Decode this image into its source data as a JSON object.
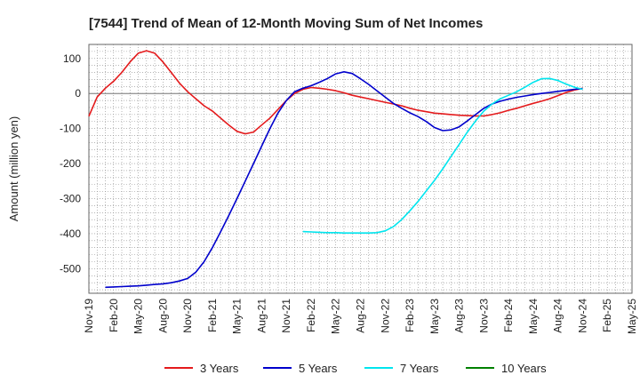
{
  "chart_data": {
    "type": "line",
    "title": "[7544]  Trend of Mean of 12-Month Moving Sum of Net Incomes",
    "ylabel": "Amount (million yen)",
    "xlabel": "",
    "ylim": [
      -570,
      140
    ],
    "xlim": [
      "2019-11",
      "2025-05"
    ],
    "yticks": [
      100,
      0,
      -100,
      -200,
      -300,
      -400,
      -500
    ],
    "xticks": [
      "Nov-19",
      "Feb-20",
      "May-20",
      "Aug-20",
      "Nov-20",
      "Feb-21",
      "May-21",
      "Aug-21",
      "Nov-21",
      "Feb-22",
      "May-22",
      "Aug-22",
      "Nov-22",
      "Feb-23",
      "May-23",
      "Aug-23",
      "Nov-23",
      "Feb-24",
      "May-24",
      "Aug-24",
      "Nov-24",
      "Feb-25",
      "May-25"
    ],
    "grid": true,
    "legend_position": "bottom",
    "series": [
      {
        "name": "3 Years",
        "color": "#e41a1c",
        "points": [
          [
            "2019-11",
            -65
          ],
          [
            "2019-12",
            -10
          ],
          [
            "2020-01",
            15
          ],
          [
            "2020-02",
            35
          ],
          [
            "2020-03",
            60
          ],
          [
            "2020-04",
            90
          ],
          [
            "2020-05",
            115
          ],
          [
            "2020-06",
            122
          ],
          [
            "2020-07",
            115
          ],
          [
            "2020-08",
            90
          ],
          [
            "2020-09",
            60
          ],
          [
            "2020-10",
            30
          ],
          [
            "2020-11",
            5
          ],
          [
            "2020-12",
            -15
          ],
          [
            "2021-01",
            -35
          ],
          [
            "2021-02",
            -50
          ],
          [
            "2021-03",
            -70
          ],
          [
            "2021-04",
            -90
          ],
          [
            "2021-05",
            -108
          ],
          [
            "2021-06",
            -115
          ],
          [
            "2021-07",
            -110
          ],
          [
            "2021-08",
            -90
          ],
          [
            "2021-09",
            -70
          ],
          [
            "2021-10",
            -45
          ],
          [
            "2021-11",
            -20
          ],
          [
            "2021-12",
            0
          ],
          [
            "2022-01",
            12
          ],
          [
            "2022-02",
            17
          ],
          [
            "2022-03",
            15
          ],
          [
            "2022-04",
            12
          ],
          [
            "2022-05",
            8
          ],
          [
            "2022-06",
            2
          ],
          [
            "2022-07",
            -5
          ],
          [
            "2022-08",
            -10
          ],
          [
            "2022-09",
            -15
          ],
          [
            "2022-10",
            -20
          ],
          [
            "2022-11",
            -25
          ],
          [
            "2022-12",
            -30
          ],
          [
            "2023-01",
            -35
          ],
          [
            "2023-02",
            -42
          ],
          [
            "2023-03",
            -48
          ],
          [
            "2023-04",
            -52
          ],
          [
            "2023-05",
            -56
          ],
          [
            "2023-06",
            -58
          ],
          [
            "2023-07",
            -60
          ],
          [
            "2023-08",
            -62
          ],
          [
            "2023-09",
            -63
          ],
          [
            "2023-10",
            -64
          ],
          [
            "2023-11",
            -64
          ],
          [
            "2023-12",
            -60
          ],
          [
            "2024-01",
            -55
          ],
          [
            "2024-02",
            -48
          ],
          [
            "2024-03",
            -42
          ],
          [
            "2024-04",
            -35
          ],
          [
            "2024-05",
            -28
          ],
          [
            "2024-06",
            -22
          ],
          [
            "2024-07",
            -15
          ],
          [
            "2024-08",
            -6
          ],
          [
            "2024-09",
            3
          ],
          [
            "2024-10",
            10
          ],
          [
            "2024-11",
            15
          ]
        ]
      },
      {
        "name": "5 Years",
        "color": "#0000cc",
        "points": [
          [
            "2020-01",
            -553
          ],
          [
            "2020-02",
            -552
          ],
          [
            "2020-03",
            -551
          ],
          [
            "2020-04",
            -550
          ],
          [
            "2020-05",
            -549
          ],
          [
            "2020-06",
            -547
          ],
          [
            "2020-07",
            -545
          ],
          [
            "2020-08",
            -543
          ],
          [
            "2020-09",
            -540
          ],
          [
            "2020-10",
            -535
          ],
          [
            "2020-11",
            -528
          ],
          [
            "2020-12",
            -510
          ],
          [
            "2021-01",
            -480
          ],
          [
            "2021-02",
            -440
          ],
          [
            "2021-03",
            -395
          ],
          [
            "2021-04",
            -348
          ],
          [
            "2021-05",
            -300
          ],
          [
            "2021-06",
            -250
          ],
          [
            "2021-07",
            -200
          ],
          [
            "2021-08",
            -150
          ],
          [
            "2021-09",
            -100
          ],
          [
            "2021-10",
            -55
          ],
          [
            "2021-11",
            -20
          ],
          [
            "2021-12",
            5
          ],
          [
            "2022-01",
            15
          ],
          [
            "2022-02",
            22
          ],
          [
            "2022-03",
            32
          ],
          [
            "2022-04",
            43
          ],
          [
            "2022-05",
            56
          ],
          [
            "2022-06",
            62
          ],
          [
            "2022-07",
            57
          ],
          [
            "2022-08",
            42
          ],
          [
            "2022-09",
            26
          ],
          [
            "2022-10",
            8
          ],
          [
            "2022-11",
            -10
          ],
          [
            "2022-12",
            -28
          ],
          [
            "2023-01",
            -42
          ],
          [
            "2023-02",
            -55
          ],
          [
            "2023-03",
            -66
          ],
          [
            "2023-04",
            -80
          ],
          [
            "2023-05",
            -97
          ],
          [
            "2023-06",
            -106
          ],
          [
            "2023-07",
            -104
          ],
          [
            "2023-08",
            -95
          ],
          [
            "2023-09",
            -78
          ],
          [
            "2023-10",
            -60
          ],
          [
            "2023-11",
            -42
          ],
          [
            "2023-12",
            -30
          ],
          [
            "2024-01",
            -22
          ],
          [
            "2024-02",
            -16
          ],
          [
            "2024-03",
            -11
          ],
          [
            "2024-04",
            -7
          ],
          [
            "2024-05",
            -3
          ],
          [
            "2024-06",
            0
          ],
          [
            "2024-07",
            3
          ],
          [
            "2024-08",
            6
          ],
          [
            "2024-09",
            9
          ],
          [
            "2024-10",
            12
          ],
          [
            "2024-11",
            14
          ]
        ]
      },
      {
        "name": "7 Years",
        "color": "#00e5ee",
        "points": [
          [
            "2022-01",
            -394
          ],
          [
            "2022-02",
            -395
          ],
          [
            "2022-03",
            -396
          ],
          [
            "2022-04",
            -397
          ],
          [
            "2022-05",
            -397
          ],
          [
            "2022-06",
            -398
          ],
          [
            "2022-07",
            -398
          ],
          [
            "2022-08",
            -398
          ],
          [
            "2022-09",
            -398
          ],
          [
            "2022-10",
            -397
          ],
          [
            "2022-11",
            -392
          ],
          [
            "2022-12",
            -380
          ],
          [
            "2023-01",
            -360
          ],
          [
            "2023-02",
            -335
          ],
          [
            "2023-03",
            -308
          ],
          [
            "2023-04",
            -278
          ],
          [
            "2023-05",
            -248
          ],
          [
            "2023-06",
            -215
          ],
          [
            "2023-07",
            -180
          ],
          [
            "2023-08",
            -145
          ],
          [
            "2023-09",
            -110
          ],
          [
            "2023-10",
            -78
          ],
          [
            "2023-11",
            -50
          ],
          [
            "2023-12",
            -30
          ],
          [
            "2024-01",
            -15
          ],
          [
            "2024-02",
            -5
          ],
          [
            "2024-03",
            5
          ],
          [
            "2024-04",
            18
          ],
          [
            "2024-05",
            32
          ],
          [
            "2024-06",
            42
          ],
          [
            "2024-07",
            43
          ],
          [
            "2024-08",
            37
          ],
          [
            "2024-09",
            27
          ],
          [
            "2024-10",
            18
          ],
          [
            "2024-11",
            12
          ]
        ]
      },
      {
        "name": "10 Years",
        "color": "#008000",
        "points": []
      }
    ]
  }
}
